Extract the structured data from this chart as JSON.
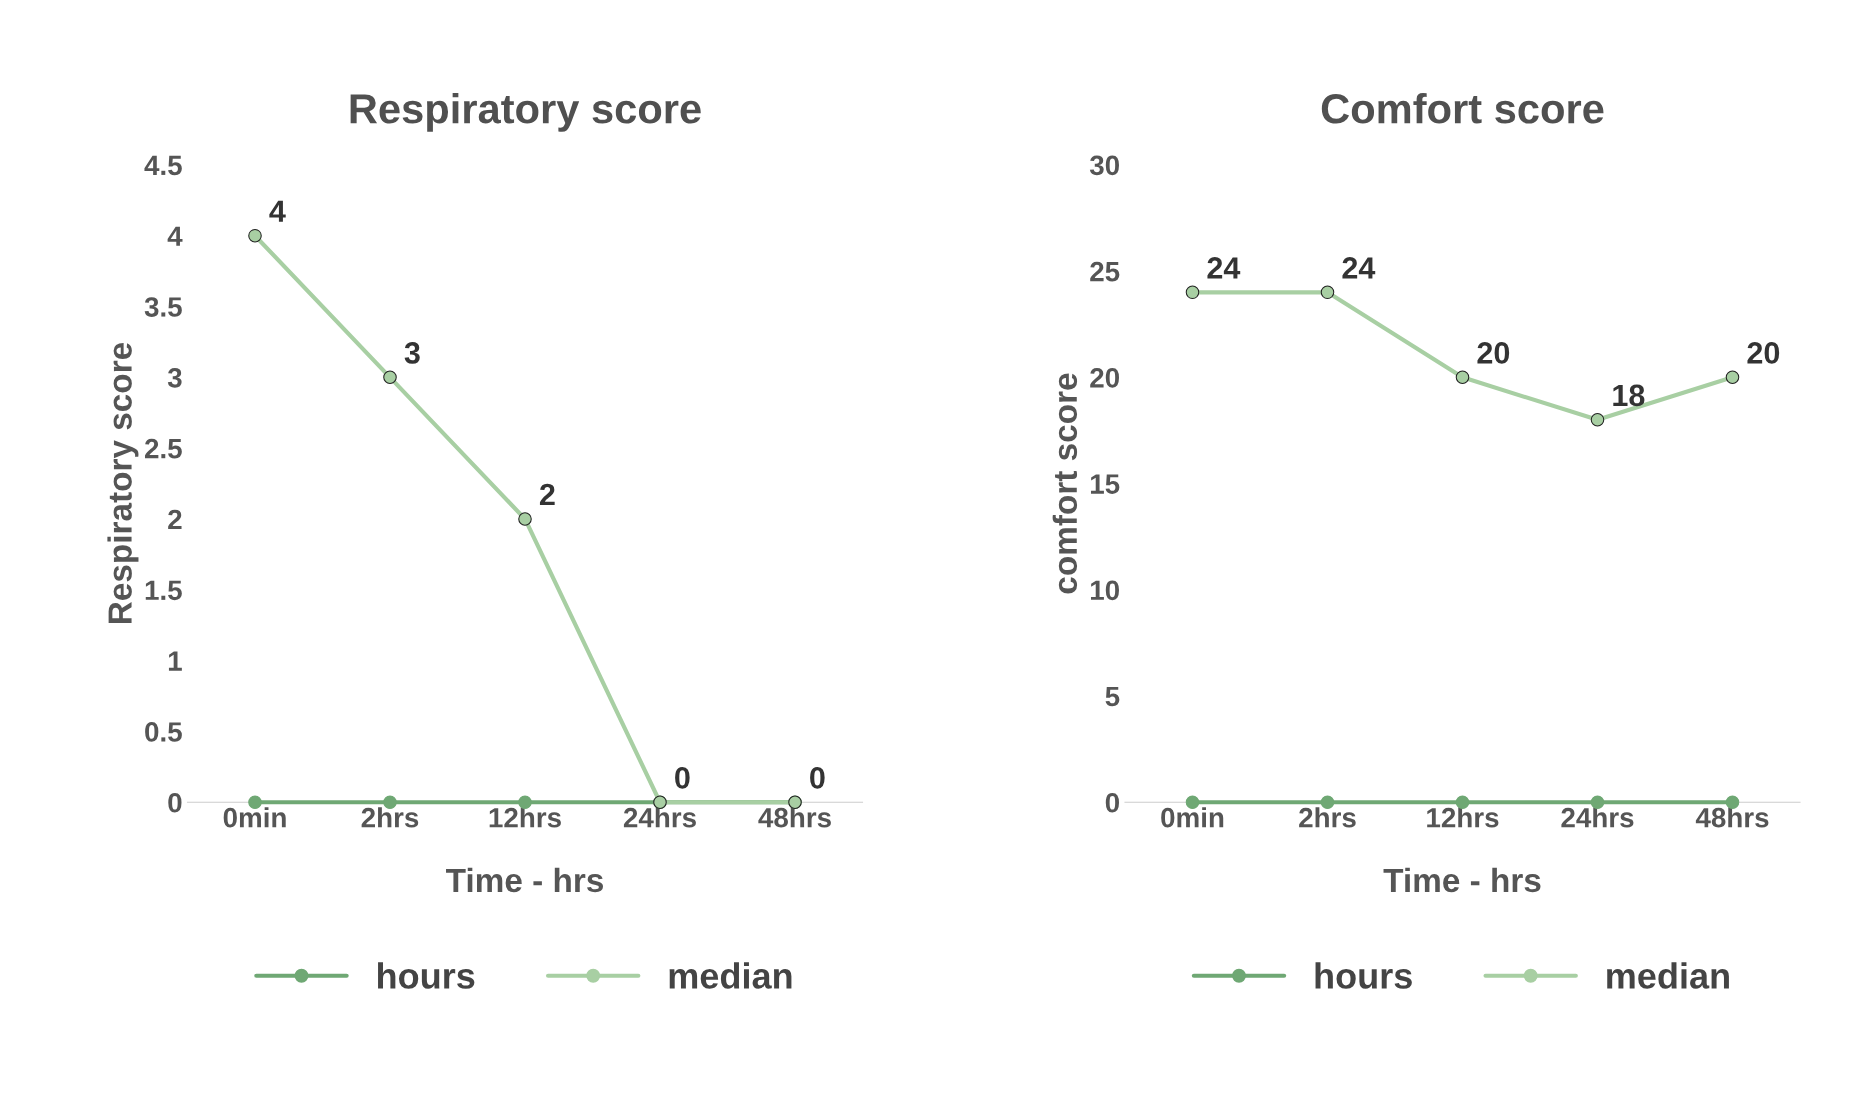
{
  "chart_data": [
    {
      "type": "line",
      "title": "Respiratory score",
      "xlabel": "Time - hrs",
      "ylabel": "Respiratory score",
      "categories": [
        "0min",
        "2hrs",
        "12hrs",
        "24hrs",
        "48hrs"
      ],
      "series": [
        {
          "name": "hours",
          "color": "#6fa874",
          "values": [
            0,
            0,
            0,
            0,
            0
          ]
        },
        {
          "name": "median",
          "color": "#a8cfa3",
          "values": [
            4,
            3,
            2,
            0,
            0
          ],
          "value_labels": [
            "4",
            "3",
            "2",
            "0",
            "0"
          ]
        }
      ],
      "ylim": [
        0,
        4.5
      ],
      "yticks": [
        0,
        0.5,
        1,
        1.5,
        2,
        2.5,
        3,
        3.5,
        4,
        4.5
      ],
      "grid": false,
      "legend": "bottom",
      "marker": "circle",
      "line_style": "solid"
    },
    {
      "type": "line",
      "title": "Comfort score",
      "xlabel": "Time - hrs",
      "ylabel": "comfort score",
      "categories": [
        "0min",
        "2hrs",
        "12hrs",
        "24hrs",
        "48hrs"
      ],
      "series": [
        {
          "name": "hours",
          "color": "#6fa874",
          "values": [
            0,
            0,
            0,
            0,
            0
          ]
        },
        {
          "name": "median",
          "color": "#a8cfa3",
          "values": [
            24,
            24,
            20,
            18,
            20
          ],
          "value_labels": [
            "24",
            "24",
            "20",
            "18",
            "20"
          ]
        }
      ],
      "ylim": [
        0,
        30
      ],
      "yticks": [
        0,
        5,
        10,
        15,
        20,
        25,
        30
      ],
      "grid": false,
      "legend": "bottom",
      "marker": "circle",
      "line_style": "solid"
    }
  ]
}
